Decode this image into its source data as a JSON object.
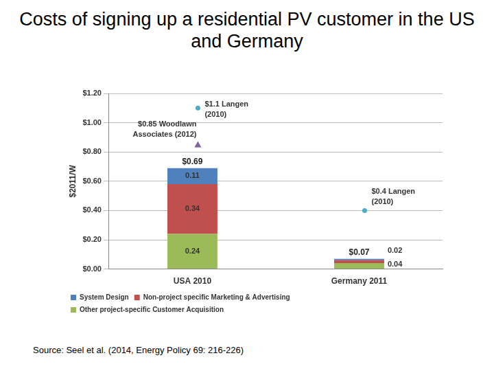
{
  "chart_data": {
    "type": "bar",
    "title": "Costs of signing up a residential PV customer in the US and Germany",
    "y_label": "$2011/W",
    "categories": [
      "USA 2010",
      "Germany 2011"
    ],
    "series": [
      {
        "name": "System Design",
        "color": "#4f81bd",
        "values": [
          0.11,
          0.01
        ],
        "value_labels": [
          "0.11",
          null
        ]
      },
      {
        "name": "Non-project specific Marketing & Advertising",
        "color": "#c0504d",
        "values": [
          0.34,
          0.02
        ],
        "value_labels": [
          "0.34",
          "0.02"
        ]
      },
      {
        "name": "Other project-specific Customer Acquisition",
        "color": "#9bbb59",
        "values": [
          0.24,
          0.04
        ],
        "value_labels": [
          "0.24",
          "0.04"
        ]
      }
    ],
    "totals": [
      0.69,
      0.07
    ],
    "total_labels": [
      "$0.69",
      "$0.07"
    ],
    "annotations": [
      {
        "label": "$1.1 Langen\n(2010)",
        "category": "USA 2010",
        "value": 1.1,
        "marker": "circle",
        "color": "#4bacc6"
      },
      {
        "label": "$0.85 Woodlawn\nAssociates (2012)",
        "category": "USA 2010",
        "value": 0.85,
        "marker": "triangle",
        "color": "#8064a2"
      },
      {
        "label": "$0.4 Langen\n(2010)",
        "category": "Germany 2011",
        "value": 0.4,
        "marker": "circle",
        "color": "#4bacc6"
      }
    ],
    "ylim": [
      0,
      1.2
    ],
    "yticks": [
      {
        "value": 0,
        "label": "$0.00"
      },
      {
        "value": 0.2,
        "label": "$0.20"
      },
      {
        "value": 0.4,
        "label": "$0.40"
      },
      {
        "value": 0.6,
        "label": "$0.60"
      },
      {
        "value": 0.8,
        "label": "$0.80"
      },
      {
        "value": 1.0,
        "label": "$1.00"
      },
      {
        "value": 1.2,
        "label": "$1.20"
      }
    ],
    "grid": true,
    "stacked": true,
    "data_labels": true,
    "legend": "bottom",
    "source": "Source: Seel et al. (2014, Energy Policy 69: 216-226)"
  }
}
